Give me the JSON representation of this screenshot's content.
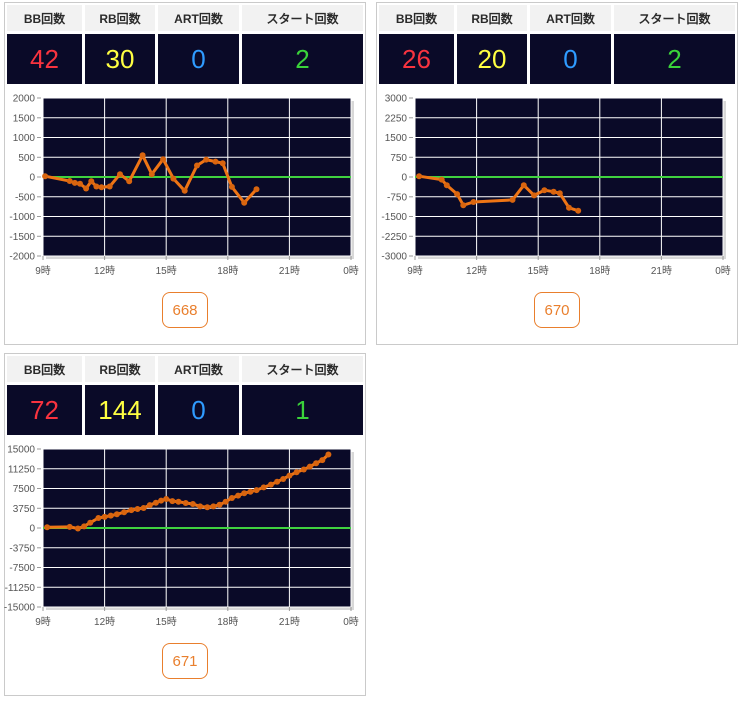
{
  "colors": {
    "plot_bg": "#0a0a28",
    "grid": "#ffffff",
    "zero_line": "#3fd23f",
    "line": "#ef7515",
    "marker": "#d9650f",
    "header_bg": "#f2f2f2",
    "header_text": "#2b2b2b",
    "panel_border": "#cacaca",
    "badge_orange": "#e97f2d",
    "bb_red": "#f8333f",
    "rb_yellow": "#ffff42",
    "art_blue": "#2f9bff",
    "start_green": "#3ad23a"
  },
  "stats_header": [
    "BB回数",
    "RB回数",
    "ART回数",
    "スタート回数"
  ],
  "panels": [
    {
      "machine_no": "668",
      "stats": [
        {
          "value": "42",
          "color": "#f8333f"
        },
        {
          "value": "30",
          "color": "#ffff42"
        },
        {
          "value": "0",
          "color": "#2f9bff"
        },
        {
          "value": "2",
          "color": "#3ad23a"
        }
      ]
    },
    {
      "machine_no": "670",
      "stats": [
        {
          "value": "26",
          "color": "#f8333f"
        },
        {
          "value": "20",
          "color": "#ffff42"
        },
        {
          "value": "0",
          "color": "#2f9bff"
        },
        {
          "value": "2",
          "color": "#3ad23a"
        }
      ]
    },
    {
      "machine_no": "671",
      "stats": [
        {
          "value": "72",
          "color": "#f8333f"
        },
        {
          "value": "144",
          "color": "#ffff42"
        },
        {
          "value": "0",
          "color": "#2f9bff"
        },
        {
          "value": "1",
          "color": "#3ad23a"
        }
      ]
    }
  ],
  "chart_data": [
    {
      "machine": "668",
      "type": "line",
      "title": "",
      "ylim": [
        -2000,
        2000
      ],
      "yticks": [
        2000,
        1500,
        1000,
        500,
        0,
        -500,
        -1000,
        -1500,
        -2000
      ],
      "xlim_hours": [
        9,
        24
      ],
      "x_gridline_hours": [
        12,
        15,
        18,
        21
      ],
      "xticks": [
        {
          "hour": 9,
          "label": "9時"
        },
        {
          "hour": 12,
          "label": "12時"
        },
        {
          "hour": 15,
          "label": "15時"
        },
        {
          "hour": 18,
          "label": "18時"
        },
        {
          "hour": 21,
          "label": "21時"
        },
        {
          "hour": 24,
          "label": "0時"
        }
      ],
      "zero_line_value": 0,
      "x_hours": [
        9.1,
        10.3,
        10.55,
        10.8,
        11.1,
        11.35,
        11.6,
        11.85,
        12.25,
        12.75,
        13.2,
        13.85,
        14.3,
        14.85,
        15.35,
        15.9,
        16.5,
        16.95,
        17.4,
        17.75,
        18.2,
        18.8,
        19.4
      ],
      "values": [
        20,
        -100,
        -150,
        -170,
        -290,
        -110,
        -240,
        -260,
        -240,
        70,
        -110,
        550,
        70,
        450,
        -40,
        -350,
        290,
        440,
        390,
        350,
        -250,
        -650,
        -310
      ]
    },
    {
      "machine": "670",
      "type": "line",
      "title": "",
      "ylim": [
        -3000,
        3000
      ],
      "yticks": [
        3000,
        2250,
        1500,
        750,
        0,
        -750,
        -1500,
        -2250,
        -3000
      ],
      "xlim_hours": [
        9,
        24
      ],
      "x_gridline_hours": [
        12,
        15,
        18,
        21
      ],
      "xticks": [
        {
          "hour": 9,
          "label": "9時"
        },
        {
          "hour": 12,
          "label": "12時"
        },
        {
          "hour": 15,
          "label": "15時"
        },
        {
          "hour": 18,
          "label": "18時"
        },
        {
          "hour": 21,
          "label": "21時"
        },
        {
          "hour": 24,
          "label": "0時"
        }
      ],
      "zero_line_value": 0,
      "x_hours": [
        9.2,
        10.3,
        10.55,
        11.05,
        11.35,
        11.85,
        13.75,
        14.3,
        14.8,
        15.3,
        15.75,
        16.05,
        16.5,
        16.95
      ],
      "values": [
        30,
        -100,
        -310,
        -650,
        -1070,
        -950,
        -870,
        -310,
        -700,
        -500,
        -560,
        -620,
        -1170,
        -1280
      ]
    },
    {
      "machine": "671",
      "type": "line",
      "title": "",
      "ylim": [
        -15000,
        15000
      ],
      "yticks": [
        15000,
        11250,
        7500,
        3750,
        0,
        -3750,
        -7500,
        -11250,
        -15000
      ],
      "xlim_hours": [
        9,
        24
      ],
      "x_gridline_hours": [
        12,
        15,
        18,
        21
      ],
      "xticks": [
        {
          "hour": 9,
          "label": "9時"
        },
        {
          "hour": 12,
          "label": "12時"
        },
        {
          "hour": 15,
          "label": "15時"
        },
        {
          "hour": 18,
          "label": "18時"
        },
        {
          "hour": 21,
          "label": "21時"
        },
        {
          "hour": 24,
          "label": "0時"
        }
      ],
      "zero_line_value": 0,
      "x_hours": [
        9.2,
        10.3,
        10.7,
        11.0,
        11.3,
        11.7,
        12.0,
        12.3,
        12.6,
        12.95,
        13.3,
        13.6,
        13.9,
        14.2,
        14.5,
        14.75,
        15.0,
        15.3,
        15.6,
        15.95,
        16.3,
        16.65,
        17.0,
        17.3,
        17.6,
        17.9,
        18.2,
        18.5,
        18.8,
        19.1,
        19.4,
        19.75,
        20.1,
        20.4,
        20.7,
        21.0,
        21.35,
        21.7,
        22.0,
        22.3,
        22.6,
        22.9
      ],
      "values": [
        150,
        200,
        -100,
        300,
        1000,
        1900,
        2100,
        2350,
        2600,
        3000,
        3400,
        3600,
        3800,
        4350,
        4800,
        5200,
        5500,
        5100,
        5000,
        4750,
        4550,
        4100,
        3950,
        4100,
        4400,
        5000,
        5700,
        6150,
        6600,
        6900,
        7200,
        7700,
        8250,
        8800,
        9300,
        9950,
        10600,
        11100,
        11650,
        12300,
        12900,
        13950
      ]
    }
  ]
}
